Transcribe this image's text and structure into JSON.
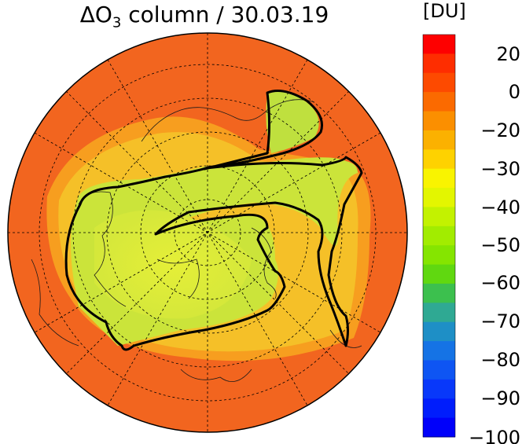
{
  "title": {
    "delta": "ΔO",
    "subscript": "3",
    "rest": " column / 30.03.19"
  },
  "colorbar": {
    "unit": "[DU]",
    "tick_labels": [
      "20",
      "0",
      "−20",
      "−30",
      "−40",
      "−50",
      "−60",
      "−70",
      "−80",
      "−90",
      "−100"
    ],
    "colors": [
      "#fe0000",
      "#fe2d00",
      "#fd4a00",
      "#fb6a00",
      "#fb8f00",
      "#fbb100",
      "#fed200",
      "#f9f400",
      "#e3f600",
      "#c3f200",
      "#a2ec00",
      "#85e500",
      "#60d810",
      "#3cc04e",
      "#2fa993",
      "#1e8fc6",
      "#1573e5",
      "#0e55f3",
      "#0838fa",
      "#001dfc",
      "#0000fa"
    ]
  },
  "map": {
    "projection": "north-polar-stereographic",
    "background_color": "#f35d1f",
    "contour_color": "#000000",
    "low_region_color": "#cde83a"
  }
}
